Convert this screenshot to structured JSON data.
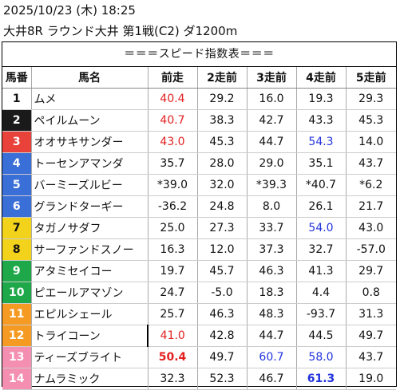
{
  "header": {
    "line1": "2025/10/23 (木) 18:25",
    "line2": "大井8R ラウンド大井 第1戦(C2) ダ1200m"
  },
  "banner": "＝＝＝スピード指数表＝＝＝",
  "columns": [
    "馬番",
    "馬名",
    "前走",
    "2走前",
    "3走前",
    "4走前",
    "5走前"
  ],
  "colors": {
    "frame1": "#ffffff",
    "frame2": "#1a1a1a",
    "frame3": "#e8423a",
    "frame4": "#3b6fd8",
    "frame5": "#f2d21b",
    "frame6": "#1fa84a",
    "frame7": "#f59a23",
    "frame8": "#f48fb1",
    "red": "#e32020",
    "blue": "#2233dd"
  },
  "rows": [
    {
      "no": "1",
      "frame": 1,
      "name": "ムメ",
      "v": [
        "40.4",
        "29.2",
        "16.0",
        "19.3",
        "29.3"
      ],
      "styles": [
        "red",
        "",
        "",
        "",
        ""
      ]
    },
    {
      "no": "2",
      "frame": 2,
      "name": "ペイルムーン",
      "v": [
        "40.7",
        "38.3",
        "42.7",
        "43.3",
        "45.3"
      ],
      "styles": [
        "red",
        "",
        "",
        "",
        ""
      ]
    },
    {
      "no": "3",
      "frame": 3,
      "name": "オオサキサンダー",
      "v": [
        "43.0",
        "45.3",
        "44.7",
        "54.3",
        "14.0"
      ],
      "styles": [
        "red",
        "",
        "",
        "blue",
        ""
      ]
    },
    {
      "no": "4",
      "frame": 4,
      "name": "トーセンアマンダ",
      "v": [
        "35.7",
        "28.0",
        "29.0",
        "35.1",
        "43.7"
      ],
      "styles": [
        "",
        "",
        "",
        "",
        ""
      ]
    },
    {
      "no": "5",
      "frame": 4,
      "name": "バーミーズルビー",
      "v": [
        "*39.0",
        "32.0",
        "*39.3",
        "*40.7",
        "*6.2"
      ],
      "styles": [
        "",
        "",
        "",
        "",
        ""
      ]
    },
    {
      "no": "6",
      "frame": 4,
      "name": "グランドターギー",
      "v": [
        "-36.2",
        "24.8",
        "8.0",
        "26.1",
        "21.7"
      ],
      "styles": [
        "",
        "",
        "",
        "",
        ""
      ]
    },
    {
      "no": "7",
      "frame": 5,
      "name": "タガノサダフ",
      "v": [
        "25.0",
        "27.3",
        "33.7",
        "54.0",
        "43.0"
      ],
      "styles": [
        "",
        "",
        "",
        "blue",
        ""
      ]
    },
    {
      "no": "8",
      "frame": 5,
      "name": "サーファンドスノー",
      "v": [
        "16.3",
        "12.0",
        "37.3",
        "32.7",
        "-57.0"
      ],
      "styles": [
        "",
        "",
        "",
        "",
        ""
      ]
    },
    {
      "no": "9",
      "frame": 6,
      "name": "アタミセイコー",
      "v": [
        "19.7",
        "45.7",
        "46.3",
        "41.3",
        "29.7"
      ],
      "styles": [
        "",
        "",
        "",
        "",
        ""
      ]
    },
    {
      "no": "10",
      "frame": 6,
      "name": "ピエールアマゾン",
      "v": [
        "24.7",
        "-5.0",
        "18.3",
        "4.4",
        "0.8"
      ],
      "styles": [
        "",
        "",
        "",
        "",
        ""
      ]
    },
    {
      "no": "11",
      "frame": 7,
      "name": "エピルシェール",
      "v": [
        "25.7",
        "46.3",
        "48.3",
        "-93.7",
        "31.3"
      ],
      "styles": [
        "",
        "",
        "",
        "",
        ""
      ]
    },
    {
      "no": "12",
      "frame": 7,
      "name": "トライコーン",
      "v": [
        "41.0",
        "42.8",
        "44.7",
        "44.5",
        "49.7"
      ],
      "styles": [
        "red bar",
        "",
        "",
        "",
        ""
      ]
    },
    {
      "no": "13",
      "frame": 8,
      "name": "ティーズブライト",
      "v": [
        "50.4",
        "49.7",
        "60.7",
        "58.0",
        "43.7"
      ],
      "styles": [
        "red bold",
        "",
        "blue",
        "blue",
        ""
      ]
    },
    {
      "no": "14",
      "frame": 8,
      "name": "ナムラミック",
      "v": [
        "32.3",
        "52.3",
        "46.7",
        "61.3",
        "19.0"
      ],
      "styles": [
        "",
        "",
        "",
        "blue bold",
        ""
      ]
    }
  ]
}
